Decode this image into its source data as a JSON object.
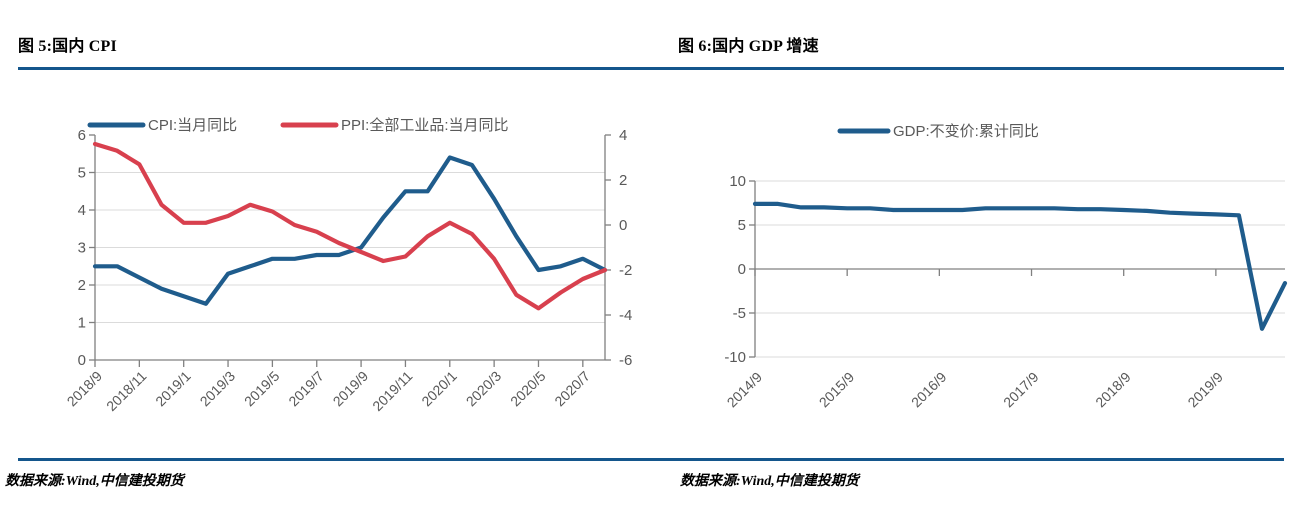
{
  "colors": {
    "series_blue": "#1F5C8C",
    "series_red": "#D8404E",
    "rule_blue": "#14568C",
    "axis_gray": "#808080",
    "label_gray": "#595959",
    "grid_gray": "#DBDBDB",
    "title_black": "#000000"
  },
  "figures": [
    {
      "title": "图 5:国内 CPI",
      "source": "数据来源:Wind,中信建投期货"
    },
    {
      "title": "图 6:国内 GDP 增速",
      "source": "数据来源:Wind,中信建投期货"
    }
  ],
  "chart_data": [
    {
      "type": "line",
      "title": "国内 CPI",
      "x": [
        "2018/9",
        "2018/10",
        "2018/11",
        "2018/12",
        "2019/1",
        "2019/2",
        "2019/3",
        "2019/4",
        "2019/5",
        "2019/6",
        "2019/7",
        "2019/8",
        "2019/9",
        "2019/10",
        "2019/11",
        "2019/12",
        "2020/1",
        "2020/2",
        "2020/3",
        "2020/4",
        "2020/5",
        "2020/6",
        "2020/7",
        "2020/8"
      ],
      "x_tick_labels": [
        "2018/9",
        "2018/11",
        "2019/1",
        "2019/3",
        "2019/5",
        "2019/7",
        "2019/9",
        "2019/11",
        "2020/1",
        "2020/3",
        "2020/5",
        "2020/7"
      ],
      "series": [
        {
          "name": "CPI:当月同比",
          "yaxis": "left",
          "color_key": "series_blue",
          "values": [
            2.5,
            2.5,
            2.2,
            1.9,
            1.7,
            1.5,
            2.3,
            2.5,
            2.7,
            2.7,
            2.8,
            2.8,
            3.0,
            3.8,
            4.5,
            4.5,
            5.4,
            5.2,
            4.3,
            3.3,
            2.4,
            2.5,
            2.7,
            2.4
          ]
        },
        {
          "name": "PPI:全部工业品:当月同比",
          "yaxis": "right",
          "color_key": "series_red",
          "values": [
            3.6,
            3.3,
            2.7,
            0.9,
            0.1,
            0.1,
            0.4,
            0.9,
            0.6,
            0.0,
            -0.3,
            -0.8,
            -1.2,
            -1.6,
            -1.4,
            -0.5,
            0.1,
            -0.4,
            -1.5,
            -3.1,
            -3.7,
            -3.0,
            -2.4,
            -2.0
          ]
        }
      ],
      "left_ylim": [
        0,
        6
      ],
      "left_yticks": [
        0,
        1,
        2,
        3,
        4,
        5,
        6
      ],
      "right_ylim": [
        -6,
        4
      ],
      "right_yticks": [
        -6,
        -4,
        -2,
        0,
        2,
        4
      ],
      "grid": "horizontal",
      "legend_position": "top"
    },
    {
      "type": "line",
      "title": "国内 GDP 增速",
      "x": [
        "2014/9",
        "2014/12",
        "2015/3",
        "2015/6",
        "2015/9",
        "2015/12",
        "2016/3",
        "2016/6",
        "2016/9",
        "2016/12",
        "2017/3",
        "2017/6",
        "2017/9",
        "2017/12",
        "2018/3",
        "2018/6",
        "2018/9",
        "2018/12",
        "2019/3",
        "2019/6",
        "2019/9",
        "2019/12",
        "2020/3",
        "2020/6"
      ],
      "x_tick_labels": [
        "2014/9",
        "2015/9",
        "2016/9",
        "2017/9",
        "2018/9",
        "2019/9"
      ],
      "series": [
        {
          "name": "GDP:不变价:累计同比",
          "yaxis": "left",
          "color_key": "series_blue",
          "values": [
            7.4,
            7.4,
            7.0,
            7.0,
            6.9,
            6.9,
            6.7,
            6.7,
            6.7,
            6.7,
            6.9,
            6.9,
            6.9,
            6.9,
            6.8,
            6.8,
            6.7,
            6.6,
            6.4,
            6.3,
            6.2,
            6.1,
            -6.8,
            -1.6
          ]
        }
      ],
      "left_ylim": [
        -10,
        10
      ],
      "left_yticks": [
        -10,
        -5,
        0,
        5,
        10
      ],
      "grid": "horizontal",
      "legend_position": "top"
    }
  ]
}
